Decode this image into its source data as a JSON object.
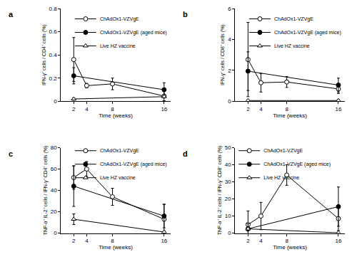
{
  "chart_data": [
    {
      "type": "line",
      "title": "a",
      "x_label": "Time (weeks)",
      "y_label": "IFN-γ⁺ cells / CD4⁺ cells (%)",
      "xlim": [
        0,
        17
      ],
      "xticks": [
        2,
        4,
        8,
        16
      ],
      "ylim": [
        0,
        0.8
      ],
      "yticks": [
        0,
        0.2,
        0.4,
        0.6,
        0.8
      ],
      "grid": false,
      "legend": "top-right",
      "series": [
        {
          "name": "ChAdOx1-VZVgE",
          "color": "#000000",
          "marker": "open circle",
          "line_style": "solid",
          "x": [
            2,
            4,
            8,
            16
          ],
          "values": [
            0.36,
            0.135,
            0.15,
            0.045
          ],
          "error": [
            0.19,
            0.02,
            0.05,
            0.04
          ]
        },
        {
          "name": "ChAdOx1-VZVgE (aged mice)",
          "color": "#000000",
          "marker": "filled circle",
          "line_style": "solid",
          "x": [
            2,
            16
          ],
          "values": [
            0.22,
            0.1
          ],
          "error": [
            0.07,
            0.06
          ]
        },
        {
          "name": "Live HZ vaccine",
          "color": "#000000",
          "marker": "open triangle",
          "line_style": "solid",
          "x": [
            2,
            16
          ],
          "values": [
            0.02,
            0.04
          ],
          "error": [
            0.01,
            0.01
          ]
        }
      ]
    },
    {
      "type": "line",
      "title": "b",
      "x_label": "Time (weeks)",
      "y_label": "IFN-γ⁺ cells / CD8⁺ cells (%)",
      "xlim": [
        0,
        17
      ],
      "xticks": [
        2,
        4,
        8,
        16
      ],
      "ylim": [
        0,
        6
      ],
      "yticks": [
        0,
        2,
        4,
        6
      ],
      "grid": false,
      "legend": "top-right",
      "series": [
        {
          "name": "ChAdOx1-VZVgE",
          "color": "#000000",
          "marker": "open circle",
          "line_style": "solid",
          "x": [
            2,
            4,
            8,
            16
          ],
          "values": [
            2.7,
            1.2,
            1.25,
            0.8
          ],
          "error": [
            2.4,
            0.6,
            0.35,
            0.3
          ]
        },
        {
          "name": "ChAdOx1-VZVgE (aged mice)",
          "color": "#000000",
          "marker": "filled circle",
          "line_style": "solid",
          "x": [
            2,
            16
          ],
          "values": [
            1.95,
            1.05
          ],
          "error": [
            1.25,
            0.45
          ]
        },
        {
          "name": "Live HZ vaccine",
          "color": "#000000",
          "marker": "open triangle",
          "line_style": "solid",
          "x": [
            2,
            16
          ],
          "values": [
            0.05,
            0.05
          ],
          "error": [
            0.05,
            0.05
          ]
        }
      ]
    },
    {
      "type": "line",
      "title": "c",
      "x_label": "Time (weeks)",
      "y_label": "TNF-α⁺ IL-2⁺ cells / IFN-γ⁺ CD4⁺ cells (%)",
      "xlim": [
        0,
        17
      ],
      "xticks": [
        2,
        4,
        8,
        16
      ],
      "ylim": [
        0,
        80
      ],
      "yticks": [
        0,
        20,
        40,
        60,
        80
      ],
      "grid": false,
      "legend": "top-right",
      "series": [
        {
          "name": "ChAdOx1-VZVgE",
          "color": "#000000",
          "marker": "open circle",
          "line_style": "solid",
          "x": [
            2,
            4,
            8,
            16
          ],
          "values": [
            52,
            60,
            34,
            13
          ],
          "error": [
            11,
            7,
            8,
            14
          ]
        },
        {
          "name": "ChAdOx1-VZVgE (aged mice)",
          "color": "#000000",
          "marker": "filled circle",
          "line_style": "solid",
          "x": [
            2,
            16
          ],
          "values": [
            44,
            16
          ],
          "error": [
            19,
            11
          ]
        },
        {
          "name": "Live HZ vaccine",
          "color": "#000000",
          "marker": "open triangle",
          "line_style": "solid",
          "x": [
            2,
            16
          ],
          "values": [
            13,
            1
          ],
          "error": [
            5,
            1
          ]
        }
      ]
    },
    {
      "type": "line",
      "title": "d",
      "x_label": "Time (weeks)",
      "y_label": "TNF-α⁺ IL-2⁺ cells / IFN-γ⁺ CD8⁺ cells (%)",
      "xlim": [
        0,
        17
      ],
      "xticks": [
        2,
        4,
        8,
        16
      ],
      "ylim": [
        0,
        50
      ],
      "yticks": [
        0,
        10,
        20,
        30,
        40,
        50
      ],
      "grid": false,
      "legend": "top-left",
      "series": [
        {
          "name": "ChAdOx1-VZVgE",
          "color": "#000000",
          "marker": "open circle",
          "line_style": "solid",
          "x": [
            2,
            4,
            8,
            16
          ],
          "values": [
            5,
            10,
            34,
            8.5
          ],
          "error": [
            8,
            8,
            6,
            7
          ]
        },
        {
          "name": "ChAdOx1-VZVgE (aged mice)",
          "color": "#000000",
          "marker": "filled circle",
          "line_style": "solid",
          "x": [
            2,
            16
          ],
          "values": [
            2.5,
            15.5
          ],
          "error": [
            3,
            11.5
          ]
        },
        {
          "name": "Live HZ vaccine",
          "color": "#000000",
          "marker": "open triangle",
          "line_style": "solid",
          "x": [
            2,
            16
          ],
          "values": [
            2.5,
            0.2
          ],
          "error": [
            1,
            0.2
          ]
        }
      ]
    }
  ]
}
